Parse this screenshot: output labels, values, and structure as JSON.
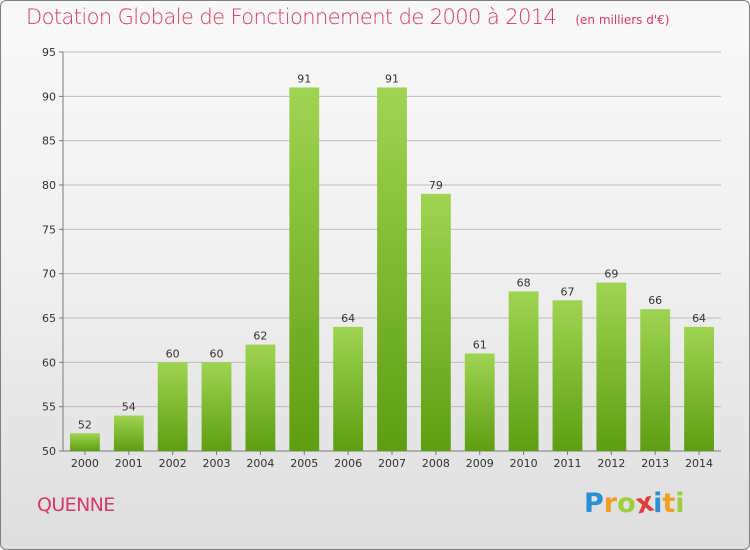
{
  "header": {
    "title": "Dotation Globale de Fonctionnement de 2000 à 2014",
    "subtitle": "(en milliers d'€)"
  },
  "footer": {
    "commune": "QUENNE",
    "logo": {
      "letters": [
        "P",
        "r",
        "o",
        "x",
        "i",
        "t",
        "i"
      ],
      "colors": [
        "#2a8fd6",
        "#f0a020",
        "#9ccd3c",
        "#e23d3d",
        "#2a8fd6",
        "#f0a020",
        "#9ccd3c"
      ]
    }
  },
  "colors": {
    "title": "#d63b63",
    "bar_top": "#9fd452",
    "bar_bottom": "#5e9e12",
    "gridline": "#bdbdbd",
    "axis": "#7a7a7a"
  },
  "chart_data": {
    "type": "bar",
    "title": "Dotation Globale de Fonctionnement de 2000 à 2014",
    "subtitle": "(en milliers d'€)",
    "categories": [
      "2000",
      "2001",
      "2002",
      "2003",
      "2004",
      "2005",
      "2006",
      "2007",
      "2008",
      "2009",
      "2010",
      "2011",
      "2012",
      "2013",
      "2014"
    ],
    "values": [
      52,
      54,
      60,
      60,
      62,
      91,
      64,
      91,
      79,
      61,
      68,
      67,
      69,
      66,
      64
    ],
    "ylim": [
      50,
      95
    ],
    "yticks": [
      50,
      55,
      60,
      65,
      70,
      75,
      80,
      85,
      90,
      95
    ],
    "grid": true,
    "xlabel": "",
    "ylabel": ""
  }
}
